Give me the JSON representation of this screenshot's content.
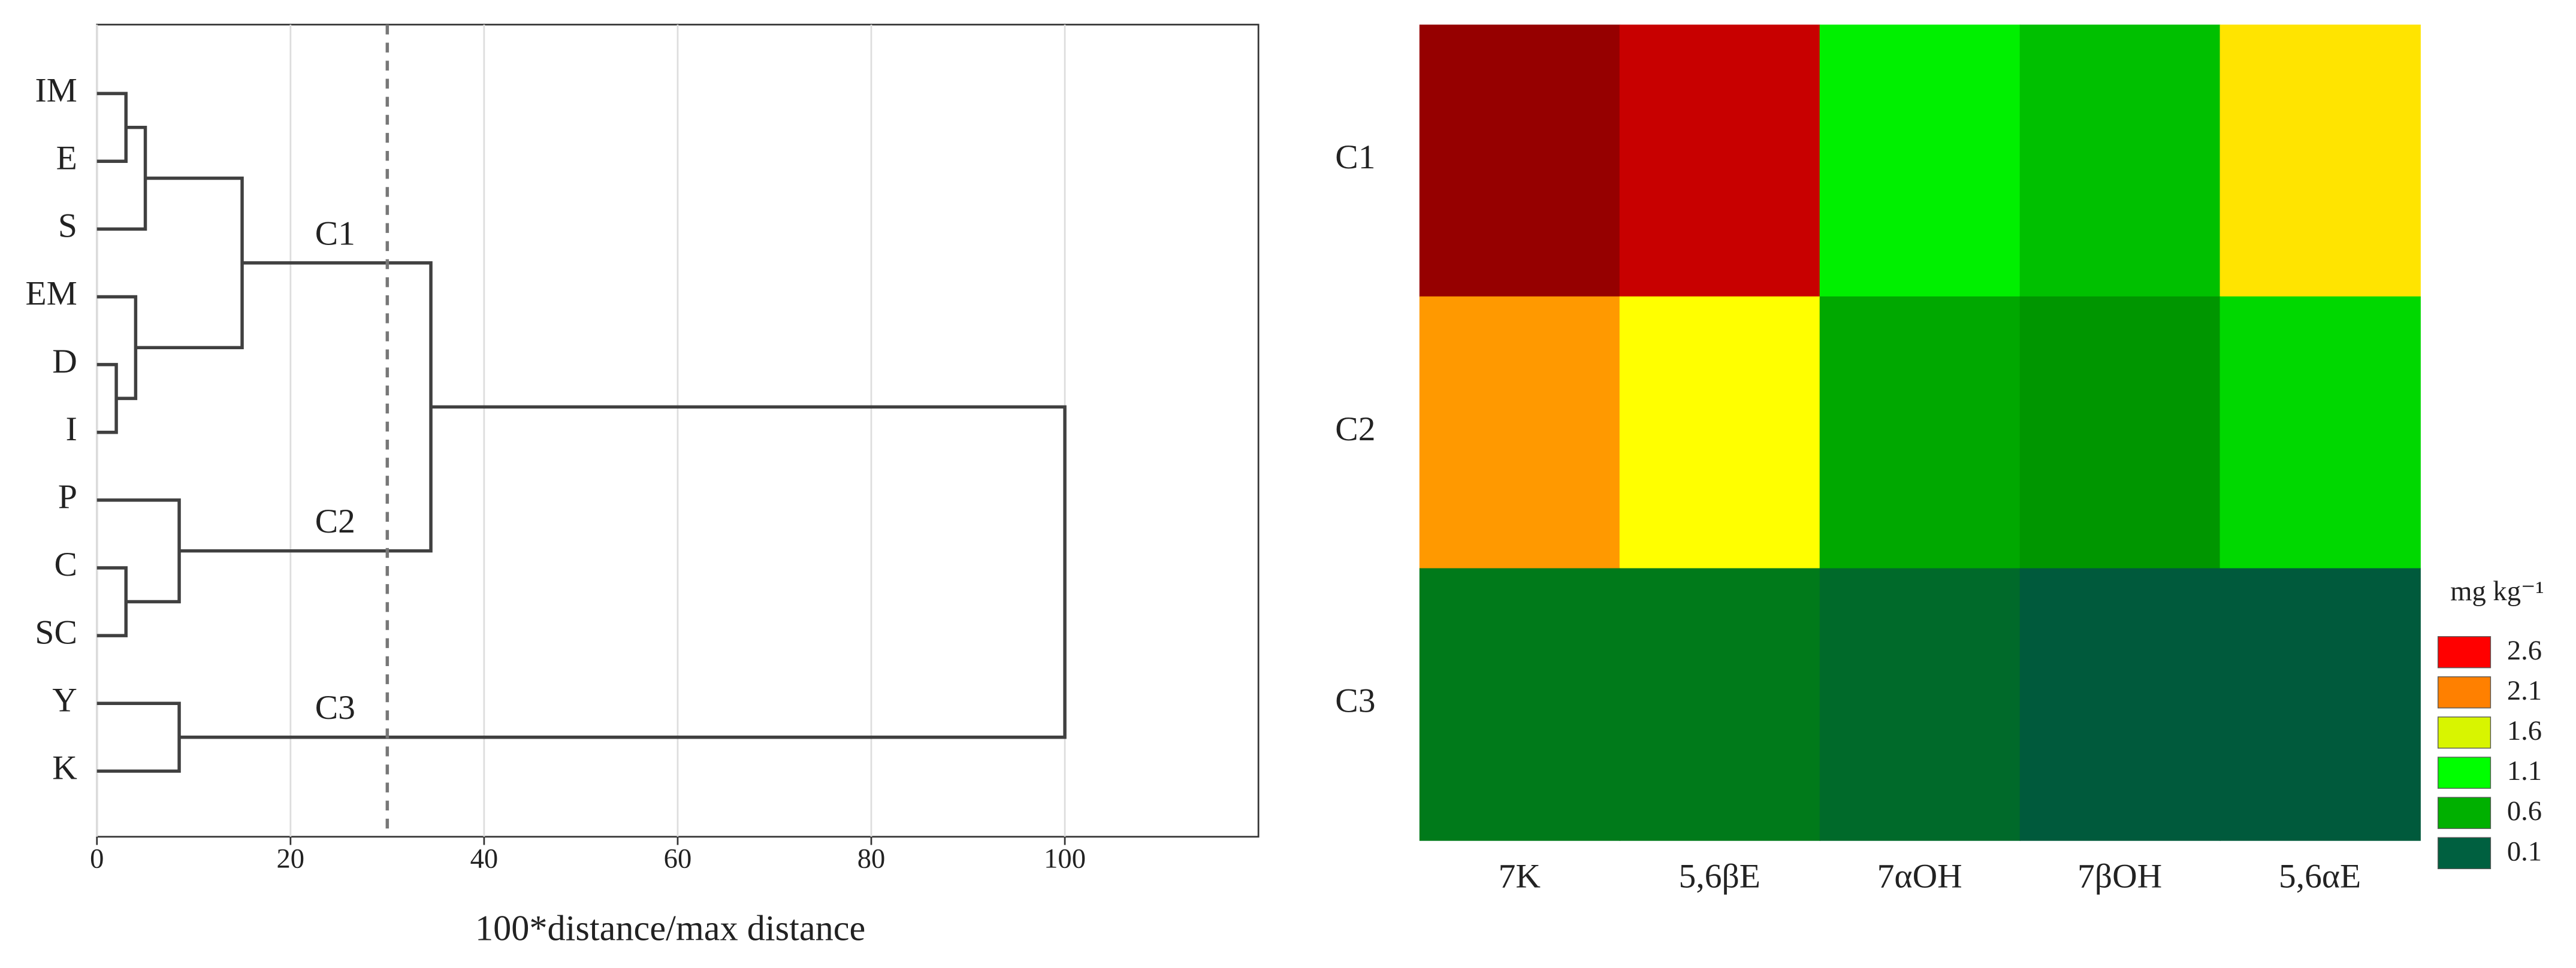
{
  "chart_data": [
    {
      "type": "dendrogram",
      "leaves": [
        "IM",
        "E",
        "S",
        "EM",
        "D",
        "I",
        "P",
        "C",
        "SC",
        "Y",
        "K"
      ],
      "merges": [
        {
          "left": 0,
          "right": 1,
          "height": 3
        },
        {
          "left": 11,
          "right": 2,
          "height": 5
        },
        {
          "left": 4,
          "right": 5,
          "height": 2
        },
        {
          "left": 3,
          "right": 13,
          "height": 4
        },
        {
          "left": 12,
          "right": 14,
          "height": 15
        },
        {
          "left": 7,
          "right": 8,
          "height": 3
        },
        {
          "left": 6,
          "right": 16,
          "height": 8.5
        },
        {
          "left": 9,
          "right": 10,
          "height": 8.5
        },
        {
          "left": 15,
          "right": 17,
          "height": 34.5
        },
        {
          "left": 19,
          "right": 18,
          "height": 100
        }
      ],
      "clusters": [
        "C1",
        "C2",
        "C3"
      ],
      "cut": 30,
      "xlabel": "100*distance/max distance",
      "xlim": [
        0,
        120
      ],
      "xticks": [
        0,
        20,
        40,
        60,
        80,
        100
      ],
      "grid": true,
      "color": "#404040"
    },
    {
      "type": "heatmap",
      "rows": [
        "C1",
        "C2",
        "C3"
      ],
      "columns": [
        "7K",
        "5,6βE",
        "7αOH",
        "7βOH",
        "5,6αE"
      ],
      "values": [
        [
          3.0,
          2.7,
          1.2,
          0.8,
          1.8
        ],
        [
          2.2,
          1.7,
          0.7,
          0.6,
          0.9
        ],
        [
          0.3,
          0.3,
          0.2,
          0.1,
          0.1
        ]
      ],
      "colors": [
        [
          "#960000",
          "#c80000",
          "#00f000",
          "#00c000",
          "#ffe400"
        ],
        [
          "#ff9900",
          "#ffff00",
          "#00a800",
          "#009600",
          "#00d800"
        ],
        [
          "#007a1a",
          "#007a1a",
          "#006a2a",
          "#005a3c",
          "#005a3c"
        ]
      ],
      "legend": {
        "title": "mg kg⁻¹",
        "levels": [
          2.6,
          2.1,
          1.6,
          1.1,
          0.6,
          0.1
        ],
        "colors": [
          "#ff0000",
          "#ff8000",
          "#d8f500",
          "#00ff00",
          "#00b000",
          "#006040"
        ]
      }
    }
  ]
}
